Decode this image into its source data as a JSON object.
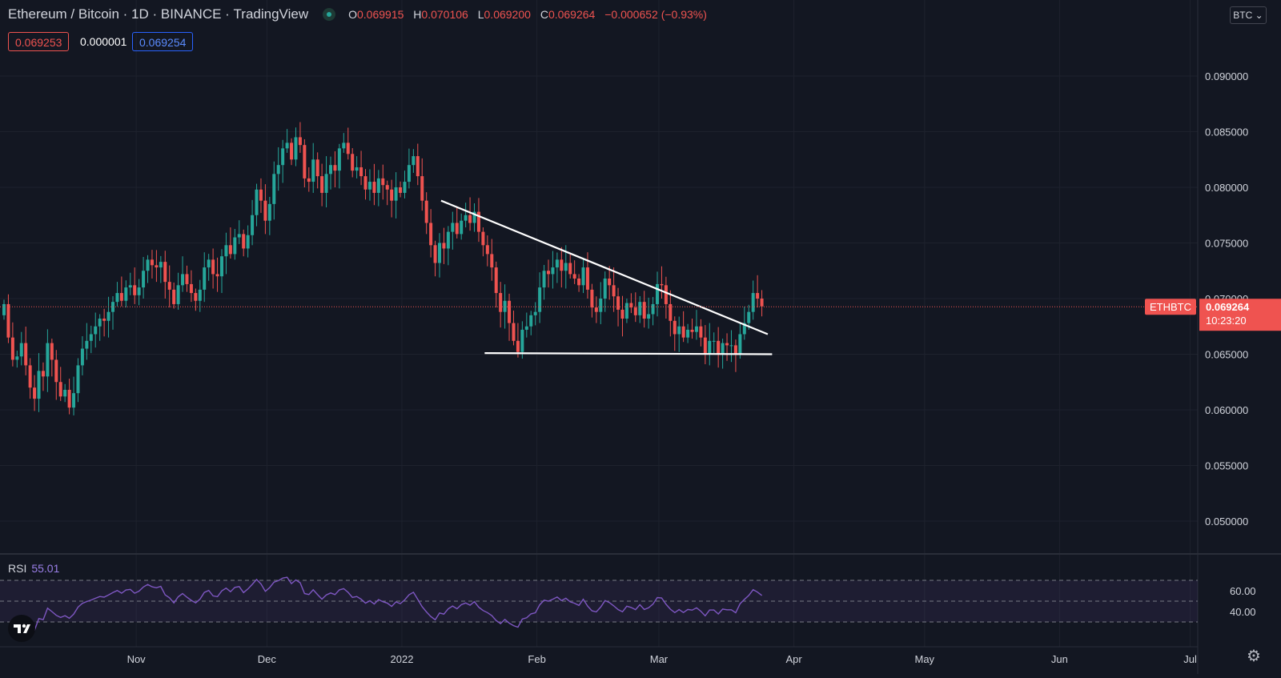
{
  "header": {
    "symbol": "Ethereum / Bitcoin",
    "interval": "1D",
    "exchange": "BINANCE",
    "source": "TradingView",
    "open_label": "O",
    "open": "0.069915",
    "high_label": "H",
    "high": "0.070106",
    "low_label": "L",
    "low": "0.069200",
    "close_label": "C",
    "close": "0.069264",
    "change": "−0.000652 (−0.93%)"
  },
  "quote": {
    "bid": "0.069253",
    "spread": "0.000001",
    "ask": "0.069254"
  },
  "currency_button": "BTC",
  "price_tag": {
    "symbol": "ETHBTC",
    "price": "0.069264",
    "countdown": "10:23:20"
  },
  "rsi": {
    "label": "RSI",
    "value": "55.01",
    "upper": 70,
    "lower": 30,
    "ticks": [
      "60.00",
      "40.00"
    ]
  },
  "colors": {
    "up": "#26a69a",
    "down": "#ef5350",
    "rsi_line": "#7e57c2",
    "background": "#131722",
    "trendline": "#ffffff"
  },
  "icons": {
    "logo": "tradingview-logo-icon",
    "settings": "gear-icon",
    "live": "live-status-dot-icon"
  },
  "chart_data": {
    "type": "candlestick",
    "y_axis": {
      "ticks": [
        "0.090000",
        "0.085000",
        "0.080000",
        "0.075000",
        "0.070000",
        "0.065000",
        "0.060000",
        "0.055000",
        "0.050000"
      ]
    },
    "x_axis": {
      "ticks": [
        "Nov",
        "Dec",
        "2022",
        "Feb",
        "Mar",
        "Apr",
        "May",
        "Jun",
        "Jul"
      ]
    },
    "series_name": "ETHBTC",
    "close": [
      0.0695,
      0.0665,
      0.0645,
      0.0648,
      0.066,
      0.064,
      0.062,
      0.061,
      0.0635,
      0.063,
      0.066,
      0.0645,
      0.0625,
      0.0612,
      0.0618,
      0.0602,
      0.0615,
      0.064,
      0.0655,
      0.0662,
      0.0668,
      0.0675,
      0.0682,
      0.068,
      0.0688,
      0.0697,
      0.0705,
      0.0698,
      0.071,
      0.0712,
      0.0703,
      0.071,
      0.0725,
      0.0735,
      0.073,
      0.0728,
      0.0733,
      0.0715,
      0.0708,
      0.0695,
      0.0712,
      0.0722,
      0.0713,
      0.0705,
      0.0698,
      0.0708,
      0.0728,
      0.0735,
      0.0722,
      0.072,
      0.0738,
      0.0748,
      0.074,
      0.0755,
      0.0758,
      0.0745,
      0.0757,
      0.0775,
      0.0798,
      0.0788,
      0.077,
      0.0785,
      0.0812,
      0.082,
      0.0835,
      0.084,
      0.0825,
      0.0845,
      0.0838,
      0.0808,
      0.0805,
      0.0825,
      0.081,
      0.0795,
      0.0812,
      0.082,
      0.0815,
      0.0835,
      0.084,
      0.083,
      0.0815,
      0.0818,
      0.081,
      0.0798,
      0.0805,
      0.0795,
      0.0808,
      0.0802,
      0.0798,
      0.0788,
      0.08,
      0.0795,
      0.0805,
      0.082,
      0.0828,
      0.081,
      0.0788,
      0.0768,
      0.0748,
      0.0732,
      0.075,
      0.0745,
      0.076,
      0.0768,
      0.0758,
      0.077,
      0.0775,
      0.0768,
      0.0778,
      0.076,
      0.0748,
      0.074,
      0.0728,
      0.0705,
      0.0688,
      0.0698,
      0.0678,
      0.0662,
      0.0652,
      0.0672,
      0.0675,
      0.0685,
      0.0688,
      0.071,
      0.0725,
      0.0722,
      0.0728,
      0.0735,
      0.0725,
      0.0732,
      0.0722,
      0.0718,
      0.0712,
      0.0728,
      0.0708,
      0.0692,
      0.0688,
      0.07,
      0.0718,
      0.0712,
      0.0702,
      0.069,
      0.0682,
      0.0696,
      0.0692,
      0.0685,
      0.0697,
      0.0682,
      0.0686,
      0.0695,
      0.0713,
      0.0712,
      0.0695,
      0.068,
      0.0668,
      0.0675,
      0.0665,
      0.0672,
      0.067,
      0.0675,
      0.0665,
      0.065,
      0.0662,
      0.0662,
      0.065,
      0.066,
      0.0658,
      0.0658,
      0.065,
      0.0668,
      0.0678,
      0.0688,
      0.0705,
      0.07,
      0.0693
    ],
    "open_first": 0.0685,
    "triangle_upper": {
      "from": [
        "2022-01-10",
        0.0788
      ],
      "to": [
        "2022-03-26",
        0.0668
      ]
    },
    "triangle_lower": {
      "from": [
        "2022-01-20",
        0.0651
      ],
      "to": [
        "2022-03-27",
        0.065
      ]
    },
    "last_price": 0.069264
  }
}
